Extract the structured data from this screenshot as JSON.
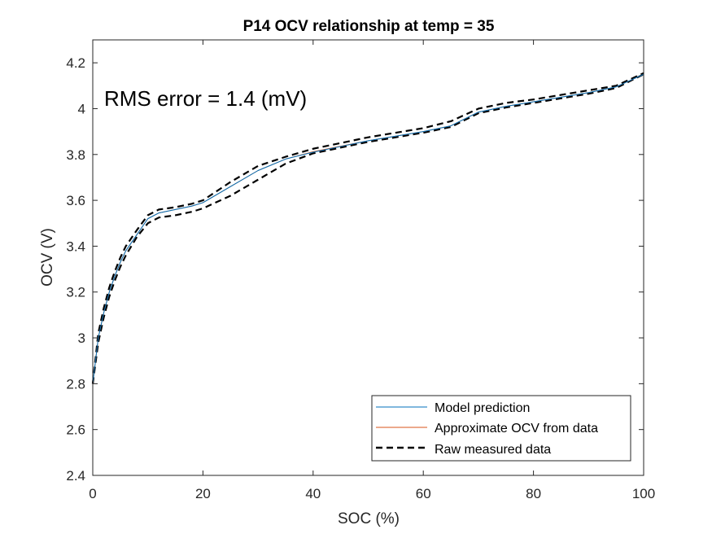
{
  "chart_data": {
    "type": "line",
    "title": "P14 OCV relationship at temp = 35",
    "xlabel": "SOC (%)",
    "ylabel": "OCV (V)",
    "xlim": [
      0,
      100
    ],
    "ylim": [
      2.4,
      4.3
    ],
    "xticks": [
      0,
      20,
      40,
      60,
      80,
      100
    ],
    "xtick_labels": [
      "0",
      "20",
      "40",
      "60",
      "80",
      "100"
    ],
    "yticks": [
      2.4,
      2.6,
      2.8,
      3.0,
      3.2,
      3.4,
      3.6,
      3.8,
      4.0,
      4.2
    ],
    "ytick_labels": [
      "2.4",
      "2.6",
      "2.8",
      "3",
      "3.2",
      "3.4",
      "3.6",
      "3.8",
      "4",
      "4.2"
    ],
    "grid": false,
    "legend_position": "bottom-right",
    "annotation": "RMS error =  1.4 (mV)",
    "colors": {
      "model": "#0072BD",
      "approx": "#D95319",
      "raw": "#000000"
    },
    "series": [
      {
        "name": "Model prediction",
        "style": "solid",
        "x": [
          0,
          1,
          2,
          3,
          4,
          5,
          6,
          8,
          10,
          12,
          15,
          18,
          20,
          25,
          30,
          35,
          40,
          45,
          50,
          55,
          60,
          65,
          70,
          75,
          80,
          85,
          90,
          95,
          100
        ],
        "y": [
          2.8,
          3.0,
          3.11,
          3.2,
          3.27,
          3.33,
          3.38,
          3.45,
          3.52,
          3.545,
          3.56,
          3.575,
          3.59,
          3.66,
          3.73,
          3.78,
          3.81,
          3.835,
          3.86,
          3.88,
          3.9,
          3.925,
          3.985,
          4.01,
          4.03,
          4.05,
          4.07,
          4.095,
          4.15
        ]
      },
      {
        "name": "Approximate OCV from data",
        "style": "solid",
        "x": [
          0,
          1,
          2,
          3,
          4,
          5,
          6,
          8,
          10,
          12,
          15,
          18,
          20,
          25,
          30,
          35,
          40,
          45,
          50,
          55,
          60,
          65,
          70,
          75,
          80,
          85,
          90,
          95,
          100
        ],
        "y": [
          2.8,
          3.0,
          3.11,
          3.2,
          3.27,
          3.33,
          3.38,
          3.45,
          3.52,
          3.545,
          3.56,
          3.575,
          3.59,
          3.66,
          3.73,
          3.78,
          3.812,
          3.836,
          3.86,
          3.88,
          3.9,
          3.925,
          3.985,
          4.01,
          4.03,
          4.05,
          4.07,
          4.095,
          4.15
        ]
      },
      {
        "name": "Raw measured data",
        "style": "dashed",
        "x": [
          0,
          1,
          2,
          3,
          4,
          5,
          6,
          8,
          10,
          12,
          15,
          18,
          20,
          25,
          30,
          35,
          40,
          45,
          50,
          55,
          60,
          65,
          70,
          75,
          80,
          85,
          90,
          95,
          100
        ],
        "y": [
          2.8,
          2.98,
          3.09,
          3.18,
          3.25,
          3.31,
          3.36,
          3.44,
          3.5,
          3.525,
          3.535,
          3.55,
          3.565,
          3.62,
          3.69,
          3.76,
          3.805,
          3.83,
          3.855,
          3.875,
          3.895,
          3.92,
          3.98,
          4.005,
          4.025,
          4.045,
          4.065,
          4.09,
          4.15
        ]
      },
      {
        "name": "",
        "style": "dashed",
        "x": [
          0,
          1,
          2,
          3,
          4,
          5,
          6,
          8,
          10,
          12,
          15,
          18,
          20,
          25,
          30,
          35,
          40,
          45,
          50,
          55,
          60,
          65,
          70,
          75,
          80,
          85,
          90,
          95,
          100
        ],
        "y": [
          2.8,
          3.02,
          3.13,
          3.22,
          3.29,
          3.35,
          3.4,
          3.47,
          3.535,
          3.56,
          3.57,
          3.585,
          3.6,
          3.68,
          3.75,
          3.79,
          3.825,
          3.85,
          3.875,
          3.895,
          3.915,
          3.945,
          4.0,
          4.025,
          4.04,
          4.06,
          4.08,
          4.1,
          4.155
        ]
      }
    ]
  }
}
